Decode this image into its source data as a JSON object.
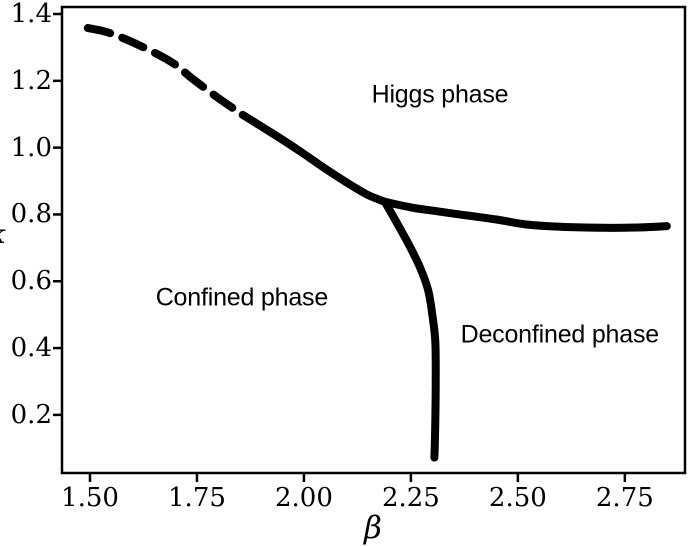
{
  "figure": {
    "background_color": "#ffffff",
    "line_color": "#000000",
    "frame_color": "#000000"
  },
  "chart_data": {
    "type": "line",
    "title": "",
    "xlabel": "β",
    "ylabel": "κ",
    "ylabel_note": "y-axis label clipped at left image edge",
    "xlim": [
      1.4346,
      2.8906
    ],
    "ylim": [
      0.026,
      1.421
    ],
    "grid": false,
    "legend": "none",
    "xticks": {
      "values": [
        1.5,
        1.75,
        2.0,
        2.25,
        2.5,
        2.75
      ],
      "labels": [
        "1.50",
        "1.75",
        "2.00",
        "2.25",
        "2.50",
        "2.75"
      ]
    },
    "yticks": {
      "values": [
        0.2,
        0.4,
        0.6,
        0.8,
        1.0,
        1.2,
        1.4
      ],
      "labels": [
        "0.2",
        "0.4",
        "0.6",
        "0.8",
        "1.0",
        "1.2",
        "1.4"
      ]
    },
    "series": [
      {
        "name": "higgs-confined-crossover",
        "style": "dashed",
        "color": "#000000",
        "line_width": 8,
        "points": [
          [
            1.495,
            1.358
          ],
          [
            1.547,
            1.343
          ],
          [
            1.624,
            1.301
          ],
          [
            1.694,
            1.253
          ],
          [
            1.738,
            1.208
          ],
          [
            1.797,
            1.151
          ],
          [
            1.857,
            1.098
          ]
        ]
      },
      {
        "name": "higgs-confined-transition",
        "style": "solid",
        "color": "#000000",
        "line_width": 8,
        "points": [
          [
            1.857,
            1.098
          ],
          [
            1.93,
            1.04
          ],
          [
            1.99,
            0.99
          ],
          [
            2.05,
            0.937
          ],
          [
            2.107,
            0.89
          ],
          [
            2.15,
            0.858
          ],
          [
            2.189,
            0.838
          ]
        ]
      },
      {
        "name": "higgs-deconfined-transition",
        "style": "solid",
        "color": "#000000",
        "line_width": 8,
        "points": [
          [
            2.189,
            0.838
          ],
          [
            2.255,
            0.82
          ],
          [
            2.32,
            0.808
          ],
          [
            2.38,
            0.797
          ],
          [
            2.45,
            0.785
          ],
          [
            2.52,
            0.77
          ],
          [
            2.6,
            0.763
          ],
          [
            2.7,
            0.76
          ],
          [
            2.78,
            0.761
          ],
          [
            2.848,
            0.765
          ]
        ]
      },
      {
        "name": "confined-deconfined-transition",
        "style": "solid",
        "color": "#000000",
        "line_width": 8,
        "points": [
          [
            2.189,
            0.838
          ],
          [
            2.215,
            0.78
          ],
          [
            2.245,
            0.71
          ],
          [
            2.27,
            0.645
          ],
          [
            2.29,
            0.575
          ],
          [
            2.3,
            0.5
          ],
          [
            2.307,
            0.42
          ],
          [
            2.308,
            0.3
          ],
          [
            2.307,
            0.18
          ],
          [
            2.305,
            0.072
          ]
        ]
      }
    ],
    "annotations": [
      {
        "name": "higgs-phase-label",
        "text": "Higgs phase",
        "x": 2.318,
        "y": 1.158
      },
      {
        "name": "confined-phase-label",
        "text": "Confined phase",
        "x": 1.855,
        "y": 0.55
      },
      {
        "name": "deconfined-phase-label",
        "text": "Deconfined phase",
        "x": 2.598,
        "y": 0.439
      }
    ]
  }
}
